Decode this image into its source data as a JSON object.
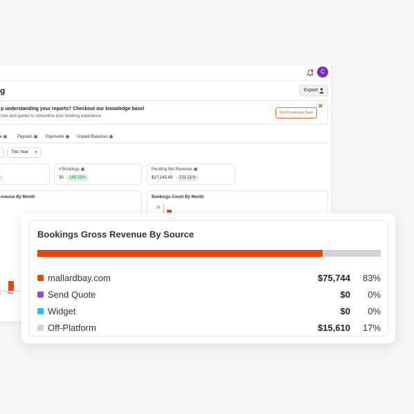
{
  "header": {
    "page_title": "g",
    "export_label": "Export",
    "avatar_initial": "C"
  },
  "kb_banner": {
    "title": "p understanding your reports? Checkout our knowledge base!",
    "subtitle": "ions and guides to streamline your booking experience",
    "button_label": "Visit Knowledge Base",
    "close_glyph": "✕"
  },
  "tabs": [
    {
      "label": "e"
    },
    {
      "label": "Payouts"
    },
    {
      "label": "Payments"
    },
    {
      "label": "Unpaid Balances"
    }
  ],
  "filters": {
    "period_value": "This Year",
    "caret": "▾"
  },
  "stats": [
    {
      "label": "",
      "value": "",
      "pill": "0%"
    },
    {
      "label": "# Bookings",
      "value": "35",
      "pill": "169.23%"
    },
    {
      "label": "Pending Net Revenue",
      "value": "$17,243.49",
      "pill": "131.21%"
    }
  ],
  "panels": {
    "left_title": "evenue By Month",
    "right_title": "Bookings Count By Month",
    "right_tick": "16",
    "left_tick_mar": "Mar",
    "left_tick_jan": "n"
  },
  "gross_revenue": {
    "title": "Bookings Gross Revenue By Source",
    "sources": [
      {
        "name": "mallardbay.com",
        "amount": "$75,744",
        "pct": "83%",
        "share": 0.83,
        "color": "#e8470a"
      },
      {
        "name": "Send Quote",
        "amount": "$0",
        "pct": "0%",
        "share": 0,
        "color": "#8a4fd8"
      },
      {
        "name": "Widget",
        "amount": "$0",
        "pct": "0%",
        "share": 0,
        "color": "#1fc3e0"
      },
      {
        "name": "Off-Platform",
        "amount": "$15,610",
        "pct": "17%",
        "share": 0.17,
        "color": "#d3d3d3"
      }
    ]
  }
}
